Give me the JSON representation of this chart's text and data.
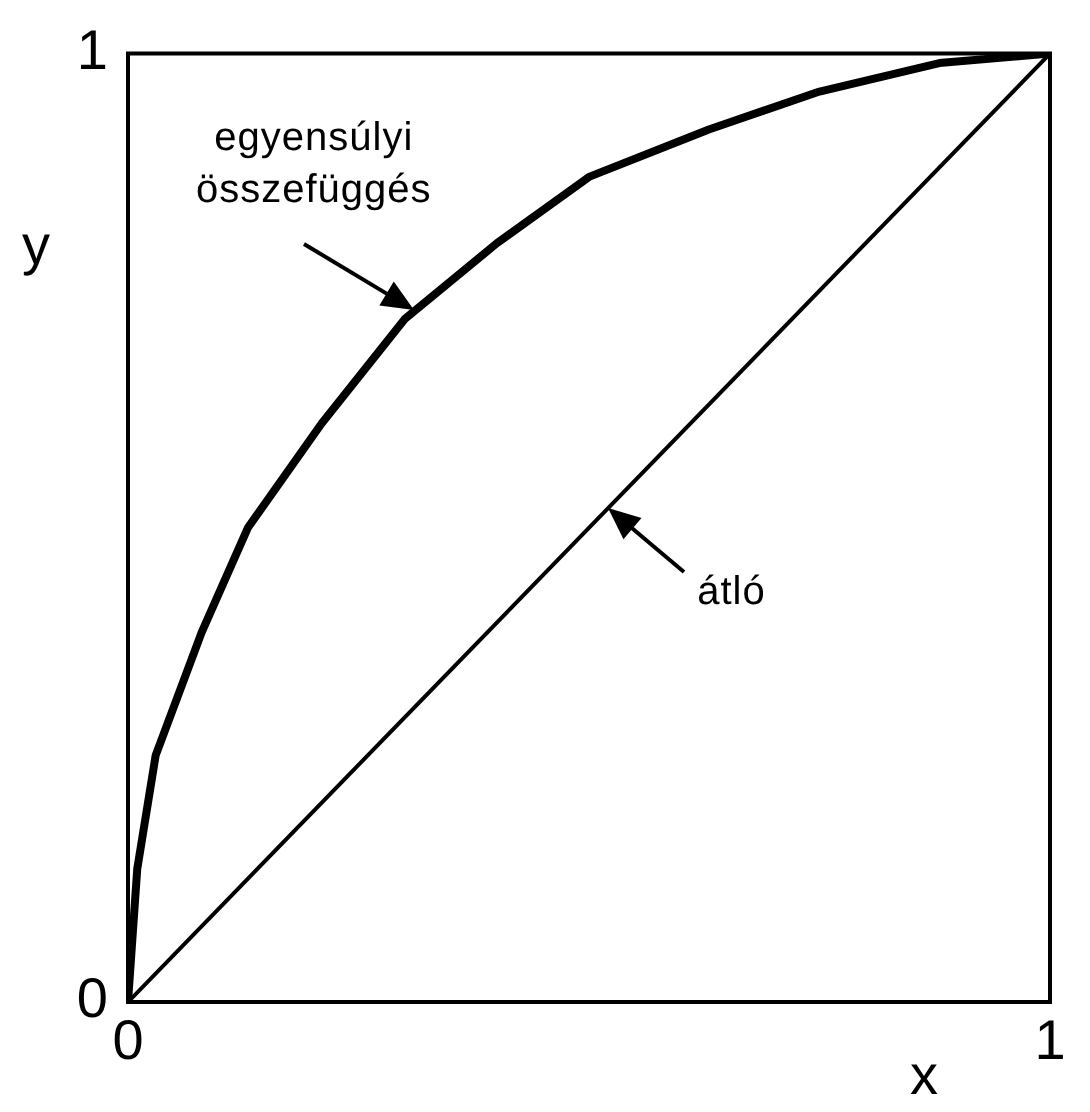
{
  "chart_data": {
    "type": "line",
    "xlabel": "x",
    "ylabel": "y",
    "xlim": [
      0,
      1
    ],
    "ylim": [
      0,
      1
    ],
    "xticks": [
      0,
      1
    ],
    "yticks": [
      0,
      1
    ],
    "series": [
      {
        "color": "#000000",
        "x": [
          0,
          0.01,
          0.03,
          0.08,
          0.13,
          0.21,
          0.3,
          0.4,
          0.5,
          0.63,
          0.75,
          0.88,
          1
        ],
        "values": [
          0,
          0.14,
          0.26,
          0.39,
          0.5,
          0.61,
          0.72,
          0.8,
          0.87,
          0.92,
          0.96,
          0.99,
          1
        ]
      },
      {
        "color": "#000000",
        "x": [
          0,
          1
        ],
        "values": [
          0,
          1
        ]
      }
    ],
    "annotations": [
      {
        "text": "egyensúlyi összefüggés",
        "x": 0.31,
        "y": 0.73
      },
      {
        "text": "átló",
        "x": 0.52,
        "y": 0.52
      }
    ],
    "legend": false,
    "marker": "none"
  }
}
